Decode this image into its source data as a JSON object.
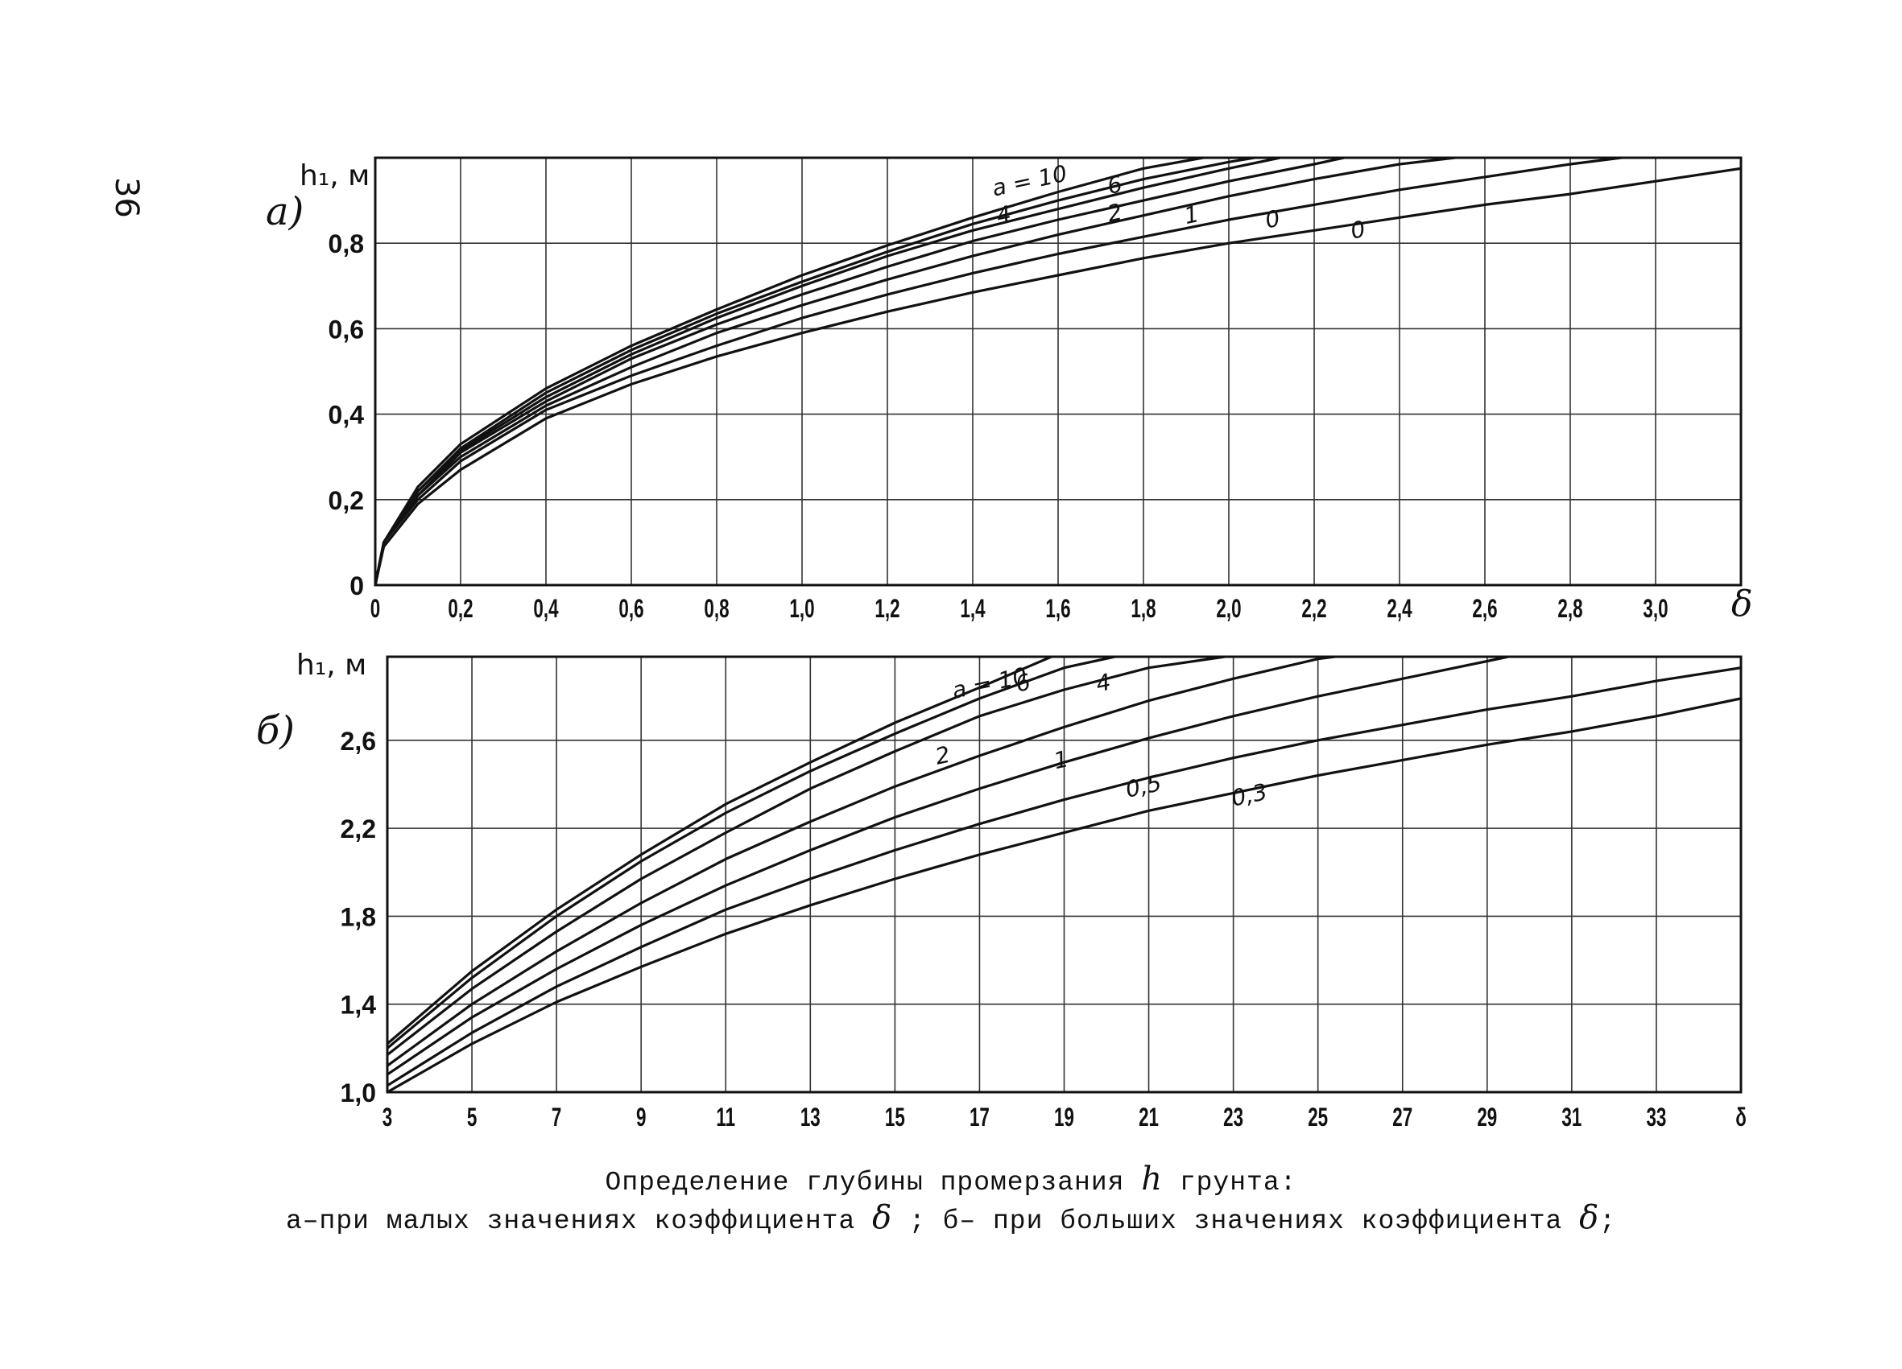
{
  "page": {
    "number": "36"
  },
  "chart_data": [
    {
      "type": "line",
      "panel_label": "а)",
      "ylabel": "h₁, м",
      "xlabel": "δ",
      "xlim": [
        0,
        3.2
      ],
      "ylim": [
        0,
        1.0
      ],
      "x_ticks": [
        "0",
        "0,2",
        "0,4",
        "0,6",
        "0,8",
        "1,0",
        "1,2",
        "1,4",
        "1,6",
        "1,8",
        "2,0",
        "2,2",
        "2,4",
        "2,6",
        "2,8",
        "3,0"
      ],
      "y_ticks": [
        "0",
        "0,2",
        "0,4",
        "0,6",
        "0,8"
      ],
      "grid": true,
      "series": [
        {
          "name": "a = 10",
          "x": [
            0,
            0.02,
            0.1,
            0.2,
            0.4,
            0.6,
            0.8,
            1.0,
            1.2,
            1.4,
            1.6,
            1.8,
            1.94
          ],
          "y": [
            0,
            0.1,
            0.23,
            0.33,
            0.46,
            0.56,
            0.645,
            0.725,
            0.795,
            0.86,
            0.92,
            0.975,
            1.0
          ]
        },
        {
          "name": "6",
          "x": [
            0,
            0.02,
            0.1,
            0.2,
            0.4,
            0.6,
            0.8,
            1.0,
            1.2,
            1.4,
            1.6,
            1.8,
            2.0,
            2.06
          ],
          "y": [
            0,
            0.1,
            0.22,
            0.32,
            0.45,
            0.55,
            0.635,
            0.71,
            0.78,
            0.845,
            0.9,
            0.95,
            0.99,
            1.0
          ]
        },
        {
          "name": "4",
          "x": [
            0,
            0.02,
            0.1,
            0.2,
            0.4,
            0.6,
            0.8,
            1.0,
            1.2,
            1.4,
            1.6,
            1.8,
            2.0,
            2.12
          ],
          "y": [
            0,
            0.1,
            0.22,
            0.315,
            0.44,
            0.54,
            0.625,
            0.7,
            0.77,
            0.83,
            0.88,
            0.93,
            0.975,
            1.0
          ]
        },
        {
          "name": "2",
          "x": [
            0,
            0.02,
            0.1,
            0.2,
            0.4,
            0.6,
            0.8,
            1.0,
            1.2,
            1.4,
            1.6,
            1.8,
            2.0,
            2.2,
            2.27
          ],
          "y": [
            0,
            0.1,
            0.21,
            0.31,
            0.43,
            0.53,
            0.61,
            0.68,
            0.745,
            0.805,
            0.855,
            0.9,
            0.945,
            0.985,
            1.0
          ]
        },
        {
          "name": "1",
          "x": [
            0,
            0.02,
            0.1,
            0.2,
            0.4,
            0.6,
            0.8,
            1.0,
            1.2,
            1.4,
            1.6,
            1.8,
            2.0,
            2.2,
            2.4,
            2.53
          ],
          "y": [
            0,
            0.1,
            0.21,
            0.3,
            0.42,
            0.51,
            0.59,
            0.655,
            0.715,
            0.77,
            0.82,
            0.865,
            0.91,
            0.95,
            0.985,
            1.0
          ]
        },
        {
          "name": "0",
          "x": [
            0,
            0.02,
            0.1,
            0.2,
            0.4,
            0.6,
            0.8,
            1.0,
            1.2,
            1.4,
            1.6,
            1.8,
            2.0,
            2.2,
            2.4,
            2.6,
            2.8,
            2.92
          ],
          "y": [
            0,
            0.1,
            0.2,
            0.29,
            0.41,
            0.49,
            0.56,
            0.625,
            0.68,
            0.73,
            0.775,
            0.815,
            0.855,
            0.89,
            0.925,
            0.955,
            0.985,
            1.0
          ]
        },
        {
          "name": "0",
          "x": [
            0,
            0.02,
            0.1,
            0.2,
            0.4,
            0.6,
            0.8,
            1.0,
            1.2,
            1.4,
            1.6,
            1.8,
            2.0,
            2.2,
            2.4,
            2.6,
            2.8,
            3.0,
            3.2
          ],
          "y": [
            0,
            0.09,
            0.19,
            0.27,
            0.39,
            0.47,
            0.535,
            0.59,
            0.64,
            0.685,
            0.725,
            0.765,
            0.8,
            0.83,
            0.86,
            0.89,
            0.915,
            0.945,
            0.975
          ]
        }
      ]
    },
    {
      "type": "line",
      "panel_label": "б)",
      "ylabel": "h₁, м",
      "xlabel": "δ",
      "xlim": [
        3,
        35
      ],
      "ylim": [
        1.0,
        2.98
      ],
      "x_ticks": [
        "3",
        "5",
        "7",
        "9",
        "11",
        "13",
        "15",
        "17",
        "19",
        "21",
        "23",
        "25",
        "27",
        "29",
        "31",
        "33",
        "δ"
      ],
      "y_ticks": [
        "1,0",
        "1,4",
        "1,8",
        "2,2",
        "2,6"
      ],
      "grid": true,
      "series": [
        {
          "name": "a = 10",
          "x": [
            3,
            5,
            7,
            9,
            11,
            13,
            15,
            17,
            18.7
          ],
          "y": [
            1.22,
            1.55,
            1.83,
            2.08,
            2.31,
            2.5,
            2.68,
            2.84,
            2.98
          ]
        },
        {
          "name": "6",
          "x": [
            3,
            5,
            7,
            9,
            11,
            13,
            15,
            17,
            19,
            20.2
          ],
          "y": [
            1.2,
            1.52,
            1.8,
            2.05,
            2.27,
            2.46,
            2.63,
            2.79,
            2.93,
            2.98
          ]
        },
        {
          "name": "4",
          "x": [
            3,
            5,
            7,
            9,
            11,
            13,
            15,
            17,
            19,
            21,
            22.8
          ],
          "y": [
            1.17,
            1.47,
            1.73,
            1.97,
            2.18,
            2.38,
            2.55,
            2.71,
            2.83,
            2.93,
            2.98
          ]
        },
        {
          "name": "2",
          "x": [
            3,
            5,
            7,
            9,
            11,
            13,
            15,
            17,
            19,
            21,
            23,
            25,
            25.4
          ],
          "y": [
            1.12,
            1.4,
            1.64,
            1.86,
            2.06,
            2.23,
            2.39,
            2.53,
            2.66,
            2.78,
            2.88,
            2.97,
            2.98
          ]
        },
        {
          "name": "1",
          "x": [
            3,
            5,
            7,
            9,
            11,
            13,
            15,
            17,
            19,
            21,
            23,
            25,
            27,
            29,
            29.5
          ],
          "y": [
            1.08,
            1.34,
            1.56,
            1.76,
            1.94,
            2.1,
            2.25,
            2.38,
            2.5,
            2.61,
            2.71,
            2.8,
            2.88,
            2.96,
            2.98
          ]
        },
        {
          "name": "0,5",
          "x": [
            3,
            5,
            7,
            9,
            11,
            13,
            15,
            17,
            19,
            21,
            23,
            25,
            27,
            29,
            31,
            33,
            35
          ],
          "y": [
            1.03,
            1.27,
            1.48,
            1.66,
            1.83,
            1.97,
            2.1,
            2.22,
            2.33,
            2.43,
            2.52,
            2.6,
            2.67,
            2.74,
            2.8,
            2.87,
            2.93
          ]
        },
        {
          "name": "0,3",
          "x": [
            3,
            5,
            7,
            9,
            11,
            13,
            15,
            17,
            19,
            21,
            23,
            25,
            27,
            29,
            31,
            33,
            35
          ],
          "y": [
            1.0,
            1.22,
            1.41,
            1.57,
            1.72,
            1.85,
            1.97,
            2.08,
            2.18,
            2.28,
            2.36,
            2.44,
            2.51,
            2.58,
            2.64,
            2.71,
            2.79
          ]
        }
      ]
    }
  ],
  "caption": {
    "line1_text": "Определение глубины промерзания",
    "line1_var": "h",
    "line1_end": "грунта:",
    "line2_a": "а–при малых значениях коэффициента",
    "line2_var1": "δ",
    "line2_b": "; б– при больших значениях коэффициента",
    "line2_var2": "δ",
    "line2_end": ";"
  }
}
